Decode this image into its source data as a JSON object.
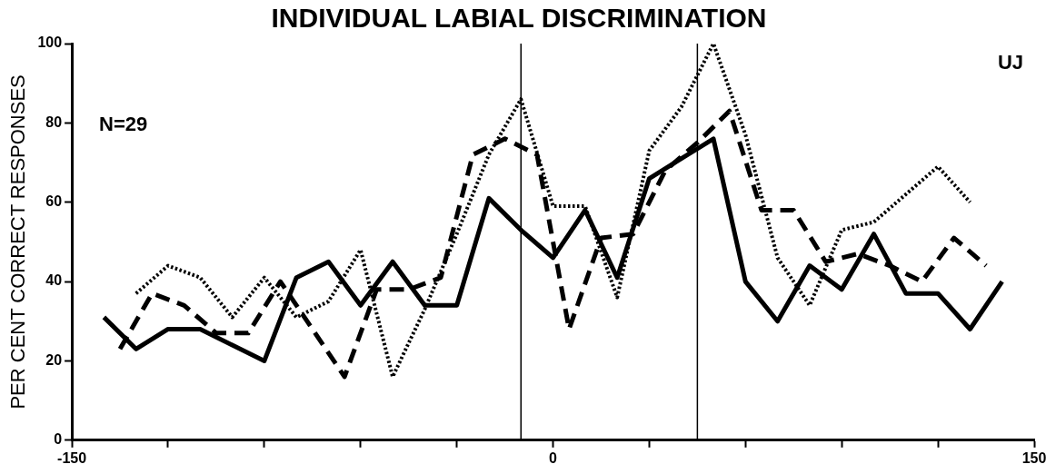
{
  "chart_data": {
    "type": "line",
    "title": "INDIVIDUAL LABIAL DISCRIMINATION",
    "ylabel": "PER CENT CORRECT RESPONSES",
    "annotations": [
      "N=29",
      "UJ"
    ],
    "xlim": [
      -150,
      150
    ],
    "xticks": [
      -150,
      {
        "value": -120,
        "label": null
      },
      {
        "value": -90,
        "label": null
      },
      {
        "value": -60,
        "label": null
      },
      {
        "value": -30,
        "label": null
      },
      0,
      {
        "value": 30,
        "label": null
      },
      {
        "value": 60,
        "label": null
      },
      {
        "value": 90,
        "label": null
      },
      {
        "value": 120,
        "label": null
      },
      150
    ],
    "ylim": [
      0,
      100
    ],
    "yticks": [
      0,
      20,
      40,
      60,
      80,
      100
    ],
    "grid": false,
    "legend": false,
    "marker": "none",
    "ref_lines": [
      {
        "axis": "x",
        "value": -10,
        "color": "#000000"
      },
      {
        "axis": "x",
        "value": 45,
        "color": "#000000"
      }
    ],
    "series": [
      {
        "color": "#000000",
        "line_style": "solid",
        "x": [
          -140,
          -130,
          -120,
          -110,
          -100,
          -90,
          -80,
          -70,
          -60,
          -50,
          -40,
          -30,
          -20,
          -10,
          0,
          10,
          20,
          30,
          40,
          50,
          60,
          70,
          80,
          90,
          100,
          110,
          120,
          130,
          140
        ],
        "values": [
          31,
          23,
          28,
          28,
          24,
          20,
          41,
          45,
          34,
          45,
          34,
          34,
          61,
          53,
          46,
          58,
          41,
          66,
          71,
          76,
          40,
          30,
          44,
          38,
          52,
          37,
          37,
          28,
          40
        ]
      },
      {
        "color": "#000000",
        "line_style": "dashed",
        "x": [
          -135,
          -125,
          -115,
          -105,
          -95,
          -85,
          -75,
          -65,
          -55,
          -45,
          -35,
          -25,
          -15,
          -5,
          5,
          15,
          25,
          35,
          45,
          55,
          65,
          75,
          85,
          95,
          105,
          115,
          125,
          135
        ],
        "values": [
          23,
          37,
          34,
          27,
          27,
          40,
          28,
          16,
          38,
          38,
          41,
          72,
          76,
          72,
          28,
          51,
          52,
          68,
          75,
          83,
          58,
          58,
          45,
          47,
          44,
          40,
          51,
          44
        ]
      },
      {
        "color": "#000000",
        "line_style": "dotted",
        "x": [
          -130,
          -120,
          -110,
          -100,
          -90,
          -80,
          -70,
          -60,
          -50,
          -40,
          -30,
          -20,
          -10,
          0,
          10,
          20,
          30,
          40,
          50,
          60,
          70,
          80,
          90,
          100,
          110,
          120,
          130
        ],
        "values": [
          37,
          44,
          41,
          31,
          41,
          31,
          35,
          48,
          16,
          33,
          52,
          72,
          86,
          59,
          59,
          36,
          73,
          84,
          100,
          77,
          46,
          34,
          53,
          55,
          62,
          69,
          60
        ]
      }
    ]
  }
}
